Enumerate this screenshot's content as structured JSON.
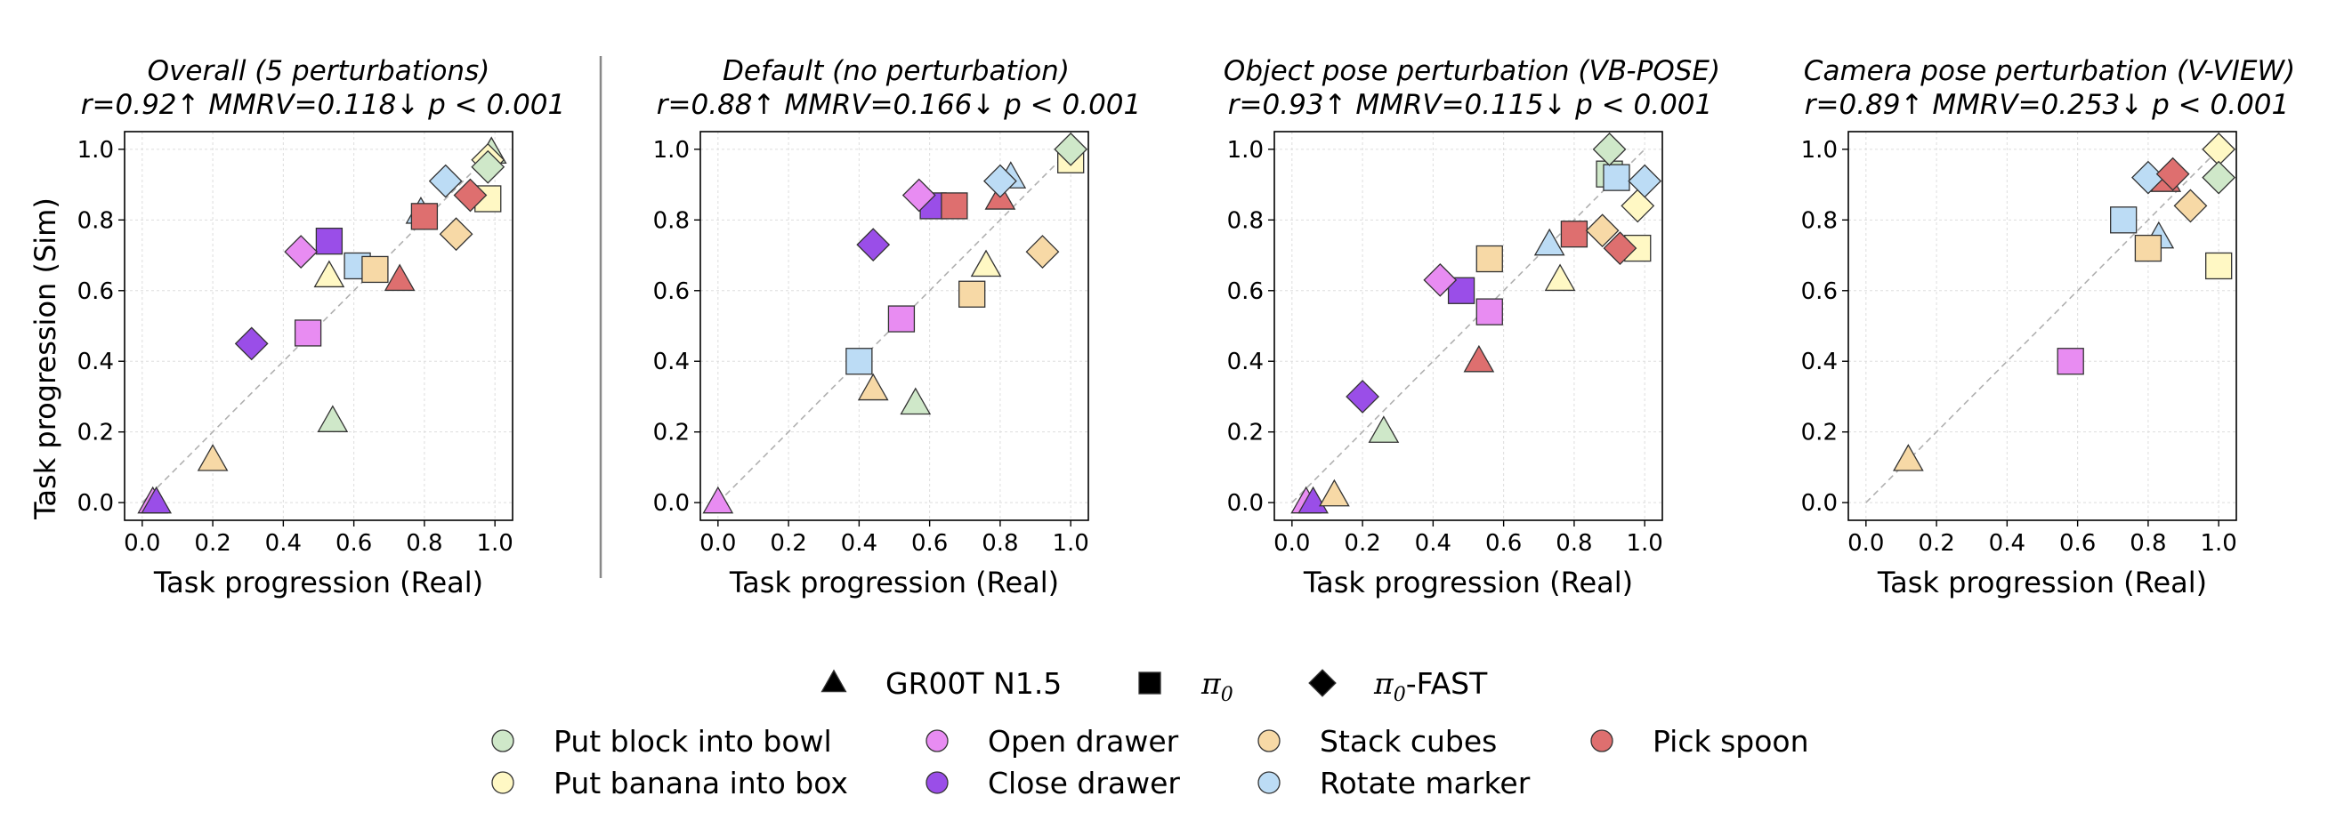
{
  "chart_data": [
    {
      "type": "scatter",
      "title": "Overall (5 perturbations)",
      "subtitle": "r=0.92↑ MMRV=0.118↓ p < 0.001",
      "xlabel": "Task progression (Real)",
      "ylabel": "Task progression (Sim)",
      "xlim": [
        -0.05,
        1.05
      ],
      "ylim": [
        -0.05,
        1.05
      ],
      "xticks": [
        "0.0",
        "0.2",
        "0.4",
        "0.6",
        "0.8",
        "1.0"
      ],
      "yticks": [
        "0.0",
        "0.2",
        "0.4",
        "0.6",
        "0.8",
        "1.0"
      ],
      "grid": true,
      "points": [
        {
          "model": "GR00T N1.5",
          "task": "Open drawer",
          "x": 0.03,
          "y": 0.0
        },
        {
          "model": "GR00T N1.5",
          "task": "Close drawer",
          "x": 0.04,
          "y": 0.0
        },
        {
          "model": "GR00T N1.5",
          "task": "Stack cubes",
          "x": 0.2,
          "y": 0.12
        },
        {
          "model": "GR00T N1.5",
          "task": "Put block into bowl",
          "x": 0.54,
          "y": 0.23
        },
        {
          "model": "GR00T N1.5",
          "task": "Put banana into box",
          "x": 0.53,
          "y": 0.64
        },
        {
          "model": "GR00T N1.5",
          "task": "Pick spoon",
          "x": 0.73,
          "y": 0.63
        },
        {
          "model": "GR00T N1.5",
          "task": "Rotate marker",
          "x": 0.79,
          "y": 0.82
        },
        {
          "model": "GR00T N1.5",
          "task": "Put block into bowl",
          "x": 0.99,
          "y": 0.99
        },
        {
          "model": "π0",
          "task": "Open drawer",
          "x": 0.47,
          "y": 0.48
        },
        {
          "model": "π0",
          "task": "Close drawer",
          "x": 0.53,
          "y": 0.74
        },
        {
          "model": "π0",
          "task": "Rotate marker",
          "x": 0.61,
          "y": 0.67
        },
        {
          "model": "π0",
          "task": "Stack cubes",
          "x": 0.66,
          "y": 0.66
        },
        {
          "model": "π0",
          "task": "Pick spoon",
          "x": 0.8,
          "y": 0.81
        },
        {
          "model": "π0",
          "task": "Put banana into box",
          "x": 0.98,
          "y": 0.86
        },
        {
          "model": "π0-FAST",
          "task": "Close drawer",
          "x": 0.31,
          "y": 0.45
        },
        {
          "model": "π0-FAST",
          "task": "Open drawer",
          "x": 0.45,
          "y": 0.71
        },
        {
          "model": "π0-FAST",
          "task": "Stack cubes",
          "x": 0.89,
          "y": 0.76
        },
        {
          "model": "π0-FAST",
          "task": "Rotate marker",
          "x": 0.86,
          "y": 0.91
        },
        {
          "model": "π0-FAST",
          "task": "Pick spoon",
          "x": 0.93,
          "y": 0.87
        },
        {
          "model": "π0-FAST",
          "task": "Put banana into box",
          "x": 0.98,
          "y": 0.97
        },
        {
          "model": "π0-FAST",
          "task": "Put block into bowl",
          "x": 0.98,
          "y": 0.95
        }
      ]
    },
    {
      "type": "scatter",
      "title": "Default (no perturbation)",
      "subtitle": "r=0.88↑ MMRV=0.166↓ p < 0.001",
      "xlabel": "Task progression (Real)",
      "ylabel": "",
      "xlim": [
        -0.05,
        1.05
      ],
      "ylim": [
        -0.05,
        1.05
      ],
      "xticks": [
        "0.0",
        "0.2",
        "0.4",
        "0.6",
        "0.8",
        "1.0"
      ],
      "yticks": [
        "0.0",
        "0.2",
        "0.4",
        "0.6",
        "0.8",
        "1.0"
      ],
      "grid": true,
      "points": [
        {
          "model": "GR00T N1.5",
          "task": "Open drawer",
          "x": 0.0,
          "y": 0.0
        },
        {
          "model": "GR00T N1.5",
          "task": "Stack cubes",
          "x": 0.44,
          "y": 0.32
        },
        {
          "model": "GR00T N1.5",
          "task": "Put block into bowl",
          "x": 0.56,
          "y": 0.28
        },
        {
          "model": "GR00T N1.5",
          "task": "Put banana into box",
          "x": 0.76,
          "y": 0.67
        },
        {
          "model": "GR00T N1.5",
          "task": "Pick spoon",
          "x": 0.8,
          "y": 0.86
        },
        {
          "model": "GR00T N1.5",
          "task": "Rotate marker",
          "x": 0.83,
          "y": 0.92
        },
        {
          "model": "π0",
          "task": "Rotate marker",
          "x": 0.4,
          "y": 0.4
        },
        {
          "model": "π0",
          "task": "Open drawer",
          "x": 0.52,
          "y": 0.52
        },
        {
          "model": "π0",
          "task": "Close drawer",
          "x": 0.61,
          "y": 0.84
        },
        {
          "model": "π0",
          "task": "Pick spoon",
          "x": 0.67,
          "y": 0.84
        },
        {
          "model": "π0",
          "task": "Stack cubes",
          "x": 0.72,
          "y": 0.59
        },
        {
          "model": "π0",
          "task": "Put banana into box",
          "x": 1.0,
          "y": 0.97
        },
        {
          "model": "π0-FAST",
          "task": "Close drawer",
          "x": 0.44,
          "y": 0.73
        },
        {
          "model": "π0-FAST",
          "task": "Open drawer",
          "x": 0.57,
          "y": 0.87
        },
        {
          "model": "π0-FAST",
          "task": "Rotate marker",
          "x": 0.8,
          "y": 0.91
        },
        {
          "model": "π0-FAST",
          "task": "Stack cubes",
          "x": 0.92,
          "y": 0.71
        },
        {
          "model": "π0-FAST",
          "task": "Put block into bowl",
          "x": 1.0,
          "y": 1.0
        }
      ]
    },
    {
      "type": "scatter",
      "title": "Object pose perturbation (VB-POSE)",
      "subtitle": "r=0.93↑ MMRV=0.115↓ p < 0.001",
      "xlabel": "Task progression (Real)",
      "ylabel": "",
      "xlim": [
        -0.05,
        1.05
      ],
      "ylim": [
        -0.05,
        1.05
      ],
      "xticks": [
        "0.0",
        "0.2",
        "0.4",
        "0.6",
        "0.8",
        "1.0"
      ],
      "yticks": [
        "0.0",
        "0.2",
        "0.4",
        "0.6",
        "0.8",
        "1.0"
      ],
      "grid": true,
      "points": [
        {
          "model": "GR00T N1.5",
          "task": "Open drawer",
          "x": 0.04,
          "y": 0.0
        },
        {
          "model": "GR00T N1.5",
          "task": "Close drawer",
          "x": 0.06,
          "y": 0.0
        },
        {
          "model": "GR00T N1.5",
          "task": "Stack cubes",
          "x": 0.12,
          "y": 0.02
        },
        {
          "model": "GR00T N1.5",
          "task": "Put block into bowl",
          "x": 0.26,
          "y": 0.2
        },
        {
          "model": "GR00T N1.5",
          "task": "Pick spoon",
          "x": 0.53,
          "y": 0.4
        },
        {
          "model": "GR00T N1.5",
          "task": "Put banana into box",
          "x": 0.76,
          "y": 0.63
        },
        {
          "model": "GR00T N1.5",
          "task": "Rotate marker",
          "x": 0.73,
          "y": 0.73
        },
        {
          "model": "π0",
          "task": "Close drawer",
          "x": 0.48,
          "y": 0.6
        },
        {
          "model": "π0",
          "task": "Open drawer",
          "x": 0.56,
          "y": 0.54
        },
        {
          "model": "π0",
          "task": "Stack cubes",
          "x": 0.56,
          "y": 0.69
        },
        {
          "model": "π0",
          "task": "Pick spoon",
          "x": 0.8,
          "y": 0.76
        },
        {
          "model": "π0",
          "task": "Put block into bowl",
          "x": 0.9,
          "y": 0.93
        },
        {
          "model": "π0",
          "task": "Rotate marker",
          "x": 0.92,
          "y": 0.92
        },
        {
          "model": "π0",
          "task": "Put banana into box",
          "x": 0.98,
          "y": 0.72
        },
        {
          "model": "π0-FAST",
          "task": "Close drawer",
          "x": 0.2,
          "y": 0.3
        },
        {
          "model": "π0-FAST",
          "task": "Open drawer",
          "x": 0.42,
          "y": 0.63
        },
        {
          "model": "π0-FAST",
          "task": "Stack cubes",
          "x": 0.88,
          "y": 0.77
        },
        {
          "model": "π0-FAST",
          "task": "Put block into bowl",
          "x": 0.9,
          "y": 1.0
        },
        {
          "model": "π0-FAST",
          "task": "Pick spoon",
          "x": 0.93,
          "y": 0.72
        },
        {
          "model": "π0-FAST",
          "task": "Put banana into box",
          "x": 0.98,
          "y": 0.84
        },
        {
          "model": "π0-FAST",
          "task": "Rotate marker",
          "x": 1.0,
          "y": 0.91
        }
      ]
    },
    {
      "type": "scatter",
      "title": "Camera pose perturbation (V-VIEW)",
      "subtitle": "r=0.89↑ MMRV=0.253↓ p < 0.001",
      "xlabel": "Task progression (Real)",
      "ylabel": "",
      "xlim": [
        -0.05,
        1.05
      ],
      "ylim": [
        -0.05,
        1.05
      ],
      "xticks": [
        "0.0",
        "0.2",
        "0.4",
        "0.6",
        "0.8",
        "1.0"
      ],
      "yticks": [
        "0.0",
        "0.2",
        "0.4",
        "0.6",
        "0.8",
        "1.0"
      ],
      "grid": true,
      "points": [
        {
          "model": "GR00T N1.5",
          "task": "Stack cubes",
          "x": 0.12,
          "y": 0.12
        },
        {
          "model": "GR00T N1.5",
          "task": "Rotate marker",
          "x": 0.83,
          "y": 0.75
        },
        {
          "model": "GR00T N1.5",
          "task": "Pick spoon",
          "x": 0.85,
          "y": 0.91
        },
        {
          "model": "π0",
          "task": "Open drawer",
          "x": 0.58,
          "y": 0.4
        },
        {
          "model": "π0",
          "task": "Rotate marker",
          "x": 0.73,
          "y": 0.8
        },
        {
          "model": "π0",
          "task": "Stack cubes",
          "x": 0.8,
          "y": 0.72
        },
        {
          "model": "π0",
          "task": "Put banana into box",
          "x": 1.0,
          "y": 0.67
        },
        {
          "model": "π0-FAST",
          "task": "Rotate marker",
          "x": 0.8,
          "y": 0.92
        },
        {
          "model": "π0-FAST",
          "task": "Pick spoon",
          "x": 0.87,
          "y": 0.93
        },
        {
          "model": "π0-FAST",
          "task": "Stack cubes",
          "x": 0.92,
          "y": 0.84
        },
        {
          "model": "π0-FAST",
          "task": "Put banana into box",
          "x": 1.0,
          "y": 1.0
        },
        {
          "model": "π0-FAST",
          "task": "Put block into bowl",
          "x": 1.0,
          "y": 0.92
        }
      ]
    }
  ],
  "legend": {
    "placement": "bottom-center",
    "models": [
      {
        "name": "GR00T N1.5",
        "marker": "triangle"
      },
      {
        "name": "π0",
        "marker": "square",
        "base": "π",
        "sub": "0",
        "suffix": ""
      },
      {
        "name": "π0-FAST",
        "marker": "diamond",
        "base": "π",
        "sub": "0",
        "suffix": "-FAST"
      }
    ],
    "tasks": [
      {
        "name": "Put block into bowl",
        "color": "#cfe8c9"
      },
      {
        "name": "Put banana into box",
        "color": "#fff8c4"
      },
      {
        "name": "Open drawer",
        "color": "#e88cf2"
      },
      {
        "name": "Close drawer",
        "color": "#9a4ee8"
      },
      {
        "name": "Stack cubes",
        "color": "#f7d9a6"
      },
      {
        "name": "Rotate marker",
        "color": "#bcdcf5"
      },
      {
        "name": "Pick spoon",
        "color": "#de6f6f"
      }
    ]
  }
}
